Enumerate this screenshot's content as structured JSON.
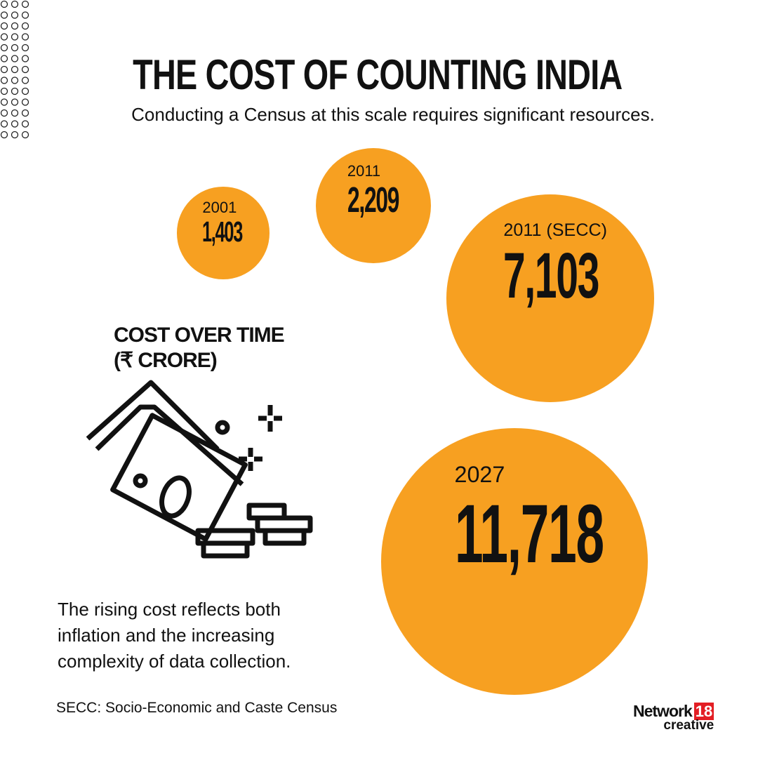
{
  "title": "THE COST OF COUNTING INDIA",
  "subtitle": "Conducting a Census at this scale requires significant resources.",
  "chart_data": {
    "type": "bubble",
    "title": "COST OVER TIME (₹ CRORE)",
    "categories": [
      "2001",
      "2011",
      "2011 (SECC)",
      "2027"
    ],
    "values": [
      1403,
      2209,
      7103,
      11718
    ],
    "value_labels": [
      "1,403",
      "2,209",
      "7,103",
      "11,718"
    ],
    "unit": "₹ crore",
    "color": "#F7A021"
  },
  "chart_heading_line1": "COST OVER TIME",
  "chart_heading_line2": "(₹ CRORE)",
  "icon": "money-coins-icon",
  "note_lines": [
    "The rising cost reflects both",
    "inflation and the increasing",
    "complexity of data collection."
  ],
  "footnote": "SECC: Socio-Economic and Caste Census",
  "logo": {
    "name": "Network",
    "number": "18",
    "sub": "creative"
  }
}
